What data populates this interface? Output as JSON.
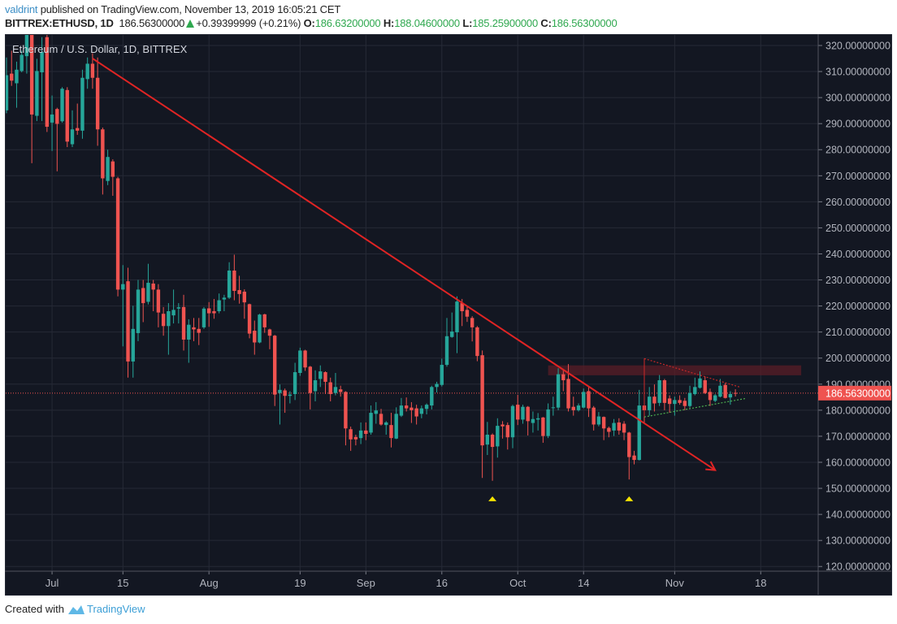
{
  "header": {
    "author": "valdrint",
    "published_text": " published on TradingView.com, November 13, 2019 16:05:21 CET",
    "symbol": "BITTREX:ETHUSD, 1D",
    "last_price": "186.56300000",
    "change_icon": "triangle-up-icon",
    "change": "+0.39399999 (+0.21%)",
    "open_label": "O:",
    "open": "186.63200000",
    "high_label": "H:",
    "high": "188.04600000",
    "low_label": "L:",
    "low": "185.25900000",
    "close_label": "C:",
    "close": "186.56300000"
  },
  "legend": "Ethereum / U.S. Dollar, 1D, BITTREX",
  "footer": {
    "created_with": "Created with",
    "brand": "TradingView",
    "logo_icon": "tradingview-logo-icon"
  },
  "colors": {
    "background": "#131722",
    "grid": "#262a36",
    "up": "#26a69a",
    "down": "#ef5350",
    "trendline": "#e02424",
    "axis_text": "#b2b5be",
    "price_label_bg": "#ef5350",
    "zone": "#5a1e27",
    "marker": "#f5e400",
    "support": "#4caf50"
  },
  "chart_data": {
    "type": "candlestick",
    "title": "Ethereum / U.S. Dollar, 1D, BITTREX",
    "ylim": [
      118.2,
      324.05
    ],
    "y_ticks": [
      "120.00000000",
      "130.00000000",
      "140.00000000",
      "150.00000000",
      "160.00000000",
      "170.00000000",
      "180.00000000",
      "190.00000000",
      "200.00000000",
      "210.00000000",
      "220.00000000",
      "230.00000000",
      "240.00000000",
      "250.00000000",
      "260.00000000",
      "270.00000000",
      "280.00000000",
      "290.00000000",
      "300.00000000",
      "310.00000000",
      "320.00000000"
    ],
    "x_ticks": [
      {
        "label": "Jul",
        "date": "2019-07-01"
      },
      {
        "label": "15",
        "date": "2019-07-15"
      },
      {
        "label": "Aug",
        "date": "2019-08-01"
      },
      {
        "label": "19",
        "date": "2019-08-19"
      },
      {
        "label": "Sep",
        "date": "2019-09-01"
      },
      {
        "label": "16",
        "date": "2019-09-16"
      },
      {
        "label": "Oct",
        "date": "2019-10-01"
      },
      {
        "label": "14",
        "date": "2019-10-14"
      },
      {
        "label": "Nov",
        "date": "2019-11-01"
      },
      {
        "label": "18",
        "date": "2019-11-18"
      }
    ],
    "x_end_date": "2019-11-29",
    "grid": true,
    "current_price": 186.563,
    "current_price_label": "186.56300000",
    "columns": [
      "date",
      "open",
      "high",
      "low",
      "close"
    ],
    "candles": [
      [
        "2019-06-22",
        295.1,
        315.4,
        294.0,
        308.6
      ],
      [
        "2019-06-23",
        309.2,
        318.0,
        304.5,
        306.5
      ],
      [
        "2019-06-24",
        305.5,
        313.8,
        296.1,
        310.7
      ],
      [
        "2019-06-25",
        310.2,
        318.0,
        309.7,
        316.4
      ],
      [
        "2019-06-26",
        315.9,
        326.0,
        309.2,
        324.5
      ],
      [
        "2019-06-27",
        324.5,
        326.0,
        274.8,
        293.5
      ],
      [
        "2019-06-28",
        293.0,
        314.9,
        291.0,
        310.2
      ],
      [
        "2019-06-29",
        309.7,
        323.2,
        291.0,
        317.5
      ],
      [
        "2019-06-30",
        323.2,
        326.0,
        286.8,
        288.8
      ],
      [
        "2019-07-01",
        290.4,
        300.8,
        279.5,
        293.5
      ],
      [
        "2019-07-02",
        295.6,
        296.1,
        271.7,
        289.9
      ],
      [
        "2019-07-03",
        290.9,
        304.0,
        290.4,
        303.4
      ],
      [
        "2019-07-04",
        302.9,
        304.0,
        281.0,
        283.1
      ],
      [
        "2019-07-05",
        282.1,
        295.1,
        281.0,
        287.8
      ],
      [
        "2019-07-06",
        288.3,
        297.7,
        285.7,
        287.3
      ],
      [
        "2019-07-07",
        287.3,
        310.7,
        284.2,
        307.6
      ],
      [
        "2019-07-08",
        307.1,
        315.4,
        303.4,
        313.0
      ],
      [
        "2019-07-09",
        313.0,
        317.0,
        303.4,
        307.6
      ],
      [
        "2019-07-10",
        307.6,
        315.4,
        281.5,
        287.8
      ],
      [
        "2019-07-11",
        287.8,
        288.5,
        262.8,
        269.0
      ],
      [
        "2019-07-12",
        268.0,
        280.0,
        266.4,
        277.2
      ],
      [
        "2019-07-13",
        275.5,
        276.3,
        262.3,
        269.6
      ],
      [
        "2019-07-14",
        269.0,
        269.6,
        223.7,
        226.3
      ],
      [
        "2019-07-15",
        226.3,
        235.7,
        204.5,
        228.4
      ],
      [
        "2019-07-16",
        229.5,
        234.7,
        192.5,
        198.7
      ],
      [
        "2019-07-17",
        198.7,
        220.1,
        192.5,
        211.2
      ],
      [
        "2019-07-18",
        209.6,
        230.0,
        206.5,
        226.3
      ],
      [
        "2019-07-19",
        226.9,
        230.0,
        213.8,
        221.1
      ],
      [
        "2019-07-20",
        221.6,
        236.2,
        220.6,
        228.9
      ],
      [
        "2019-07-21",
        228.6,
        230.0,
        218.0,
        226.3
      ],
      [
        "2019-07-22",
        226.3,
        228.4,
        211.8,
        217.5
      ],
      [
        "2019-07-23",
        217.0,
        219.6,
        208.6,
        212.3
      ],
      [
        "2019-07-24",
        212.3,
        221.1,
        201.3,
        218.0
      ],
      [
        "2019-07-25",
        216.4,
        226.3,
        213.3,
        218.5
      ],
      [
        "2019-07-26",
        219.0,
        221.1,
        213.3,
        219.5
      ],
      [
        "2019-07-27",
        219.6,
        224.3,
        202.9,
        207.1
      ],
      [
        "2019-07-28",
        207.1,
        214.9,
        198.2,
        212.8
      ],
      [
        "2019-07-29",
        211.8,
        215.4,
        206.5,
        211.0
      ],
      [
        "2019-07-30",
        211.2,
        215.4,
        205.0,
        209.7
      ],
      [
        "2019-07-31",
        211.8,
        219.6,
        211.2,
        219.0
      ],
      [
        "2019-08-01",
        219.1,
        221.5,
        212.0,
        217.2
      ],
      [
        "2019-08-02",
        218.0,
        222.7,
        215.1,
        217.2
      ],
      [
        "2019-08-03",
        218.0,
        224.8,
        217.2,
        222.2
      ],
      [
        "2019-08-04",
        222.5,
        224.3,
        218.0,
        223.2
      ],
      [
        "2019-08-05",
        223.2,
        236.8,
        222.7,
        233.6
      ],
      [
        "2019-08-06",
        233.6,
        239.7,
        222.2,
        225.8
      ],
      [
        "2019-08-07",
        226.1,
        231.6,
        220.9,
        224.6
      ],
      [
        "2019-08-08",
        225.5,
        226.4,
        215.1,
        221.4
      ],
      [
        "2019-08-09",
        220.7,
        220.9,
        207.6,
        209.4
      ],
      [
        "2019-08-10",
        210.5,
        214.4,
        201.3,
        206.0
      ],
      [
        "2019-08-11",
        206.0,
        217.0,
        205.7,
        216.7
      ],
      [
        "2019-08-12",
        216.8,
        217.0,
        209.7,
        211.8
      ],
      [
        "2019-08-13",
        211.0,
        211.3,
        203.4,
        208.6
      ],
      [
        "2019-08-14",
        208.6,
        208.9,
        181.6,
        186.0
      ],
      [
        "2019-08-15",
        186.6,
        189.9,
        174.5,
        187.8
      ],
      [
        "2019-08-16",
        187.6,
        188.3,
        179.0,
        185.5
      ],
      [
        "2019-08-17",
        185.5,
        187.3,
        182.6,
        186.0
      ],
      [
        "2019-08-18",
        186.2,
        198.2,
        183.9,
        194.6
      ],
      [
        "2019-08-19",
        194.3,
        204.0,
        193.2,
        202.9
      ],
      [
        "2019-08-20",
        202.9,
        203.2,
        195.1,
        196.4
      ],
      [
        "2019-08-21",
        196.7,
        197.0,
        180.3,
        186.6
      ],
      [
        "2019-08-22",
        187.3,
        195.3,
        183.4,
        191.5
      ],
      [
        "2019-08-23",
        192.0,
        197.2,
        188.9,
        194.9
      ],
      [
        "2019-08-24",
        194.6,
        194.9,
        186.2,
        190.9
      ],
      [
        "2019-08-25",
        190.7,
        192.5,
        183.4,
        186.2
      ],
      [
        "2019-08-26",
        186.6,
        194.3,
        185.7,
        188.9
      ],
      [
        "2019-08-27",
        188.0,
        189.4,
        185.2,
        187.0
      ],
      [
        "2019-08-28",
        187.0,
        187.3,
        166.5,
        173.0
      ],
      [
        "2019-08-29",
        172.7,
        173.7,
        164.4,
        168.8
      ],
      [
        "2019-08-30",
        169.7,
        170.6,
        166.5,
        168.8
      ],
      [
        "2019-08-31",
        169.3,
        175.3,
        167.0,
        172.2
      ],
      [
        "2019-09-01",
        172.2,
        175.3,
        168.5,
        170.9
      ],
      [
        "2019-09-02",
        171.4,
        181.8,
        170.6,
        179.0
      ],
      [
        "2019-09-03",
        178.6,
        183.1,
        174.8,
        179.9
      ],
      [
        "2019-09-04",
        178.6,
        180.5,
        174.1,
        174.5
      ],
      [
        "2019-09-05",
        174.3,
        175.8,
        170.6,
        175.3
      ],
      [
        "2019-09-06",
        174.3,
        179.0,
        165.7,
        169.3
      ],
      [
        "2019-09-07",
        169.1,
        181.1,
        168.9,
        178.6
      ],
      [
        "2019-09-08",
        177.9,
        184.7,
        177.4,
        181.8
      ],
      [
        "2019-09-09",
        181.8,
        184.9,
        179.5,
        180.7
      ],
      [
        "2019-09-10",
        181.0,
        183.1,
        175.1,
        180.0
      ],
      [
        "2019-09-11",
        180.7,
        182.1,
        174.5,
        177.6
      ],
      [
        "2019-09-12",
        178.6,
        181.8,
        176.9,
        180.7
      ],
      [
        "2019-09-13",
        180.5,
        182.6,
        178.4,
        182.1
      ],
      [
        "2019-09-14",
        181.8,
        189.4,
        180.3,
        188.9
      ],
      [
        "2019-09-15",
        188.9,
        190.9,
        186.8,
        190.1
      ],
      [
        "2019-09-16",
        189.7,
        199.8,
        189.1,
        197.4
      ],
      [
        "2019-09-17",
        197.4,
        215.4,
        196.7,
        208.4
      ],
      [
        "2019-09-18",
        208.1,
        217.5,
        207.8,
        210.2
      ],
      [
        "2019-09-19",
        209.9,
        223.7,
        201.9,
        221.7
      ],
      [
        "2019-09-20",
        221.1,
        222.7,
        212.3,
        218.0
      ],
      [
        "2019-09-21",
        218.5,
        220.1,
        213.9,
        215.9
      ],
      [
        "2019-09-22",
        215.4,
        216.1,
        206.4,
        211.8
      ],
      [
        "2019-09-23",
        211.8,
        212.3,
        198.8,
        200.8
      ],
      [
        "2019-09-24",
        201.1,
        202.9,
        154.0,
        166.5
      ],
      [
        "2019-09-25",
        166.8,
        175.5,
        162.8,
        170.6
      ],
      [
        "2019-09-26",
        170.6,
        171.1,
        152.9,
        165.9
      ],
      [
        "2019-09-27",
        166.1,
        176.9,
        161.8,
        174.0
      ],
      [
        "2019-09-28",
        174.5,
        175.8,
        169.1,
        173.8
      ],
      [
        "2019-09-29",
        174.3,
        175.3,
        164.9,
        169.6
      ],
      [
        "2019-09-30",
        169.6,
        182.1,
        165.4,
        181.6
      ],
      [
        "2019-10-01",
        182.1,
        185.9,
        174.3,
        176.4
      ],
      [
        "2019-10-02",
        176.4,
        182.1,
        174.8,
        181.3
      ],
      [
        "2019-10-03",
        181.3,
        181.6,
        170.3,
        175.8
      ],
      [
        "2019-10-04",
        175.1,
        179.5,
        171.4,
        176.6
      ],
      [
        "2019-10-05",
        176.4,
        178.9,
        172.2,
        176.9
      ],
      [
        "2019-10-06",
        177.2,
        177.4,
        167.5,
        170.1
      ],
      [
        "2019-10-07",
        170.1,
        182.6,
        169.3,
        180.3
      ],
      [
        "2019-10-08",
        180.8,
        185.2,
        177.9,
        181.1
      ],
      [
        "2019-10-09",
        181.0,
        196.1,
        180.0,
        193.8
      ],
      [
        "2019-10-10",
        193.8,
        195.6,
        187.3,
        191.5
      ],
      [
        "2019-10-11",
        192.0,
        197.7,
        179.5,
        180.7
      ],
      [
        "2019-10-12",
        181.3,
        185.2,
        177.9,
        180.0
      ],
      [
        "2019-10-13",
        180.0,
        182.6,
        179.5,
        181.8
      ],
      [
        "2019-10-14",
        181.0,
        188.3,
        180.7,
        187.0
      ],
      [
        "2019-10-15",
        187.3,
        188.9,
        177.4,
        180.7
      ],
      [
        "2019-10-16",
        181.0,
        181.6,
        172.2,
        174.5
      ],
      [
        "2019-10-17",
        174.5,
        179.3,
        173.8,
        177.6
      ],
      [
        "2019-10-18",
        177.4,
        177.6,
        168.5,
        173.0
      ],
      [
        "2019-10-19",
        173.2,
        173.7,
        169.6,
        171.7
      ],
      [
        "2019-10-20",
        172.2,
        176.6,
        170.1,
        175.1
      ],
      [
        "2019-10-21",
        175.3,
        176.9,
        170.6,
        172.2
      ],
      [
        "2019-10-22",
        174.8,
        175.8,
        168.5,
        171.4
      ],
      [
        "2019-10-23",
        171.4,
        171.7,
        153.4,
        162.0
      ],
      [
        "2019-10-24",
        162.6,
        164.4,
        159.2,
        160.9
      ],
      [
        "2019-10-25",
        160.9,
        187.8,
        160.7,
        181.8
      ],
      [
        "2019-10-26",
        181.8,
        199.8,
        175.3,
        180.0
      ],
      [
        "2019-10-27",
        180.0,
        188.9,
        177.9,
        185.2
      ],
      [
        "2019-10-28",
        185.2,
        189.9,
        179.5,
        182.6
      ],
      [
        "2019-10-29",
        182.8,
        193.5,
        181.6,
        191.5
      ],
      [
        "2019-10-30",
        191.5,
        192.0,
        180.0,
        182.8
      ],
      [
        "2019-10-31",
        184.5,
        185.7,
        179.0,
        182.4
      ],
      [
        "2019-11-01",
        182.4,
        185.2,
        177.9,
        183.9
      ],
      [
        "2019-11-02",
        183.9,
        185.7,
        182.1,
        182.8
      ],
      [
        "2019-11-03",
        183.6,
        184.7,
        180.0,
        181.6
      ],
      [
        "2019-11-04",
        181.6,
        189.4,
        181.0,
        186.6
      ],
      [
        "2019-11-05",
        186.2,
        192.5,
        185.7,
        188.9
      ],
      [
        "2019-11-06",
        188.6,
        194.9,
        188.3,
        192.2
      ],
      [
        "2019-11-07",
        191.5,
        193.0,
        186.2,
        186.6
      ],
      [
        "2019-11-08",
        187.0,
        188.3,
        181.6,
        183.9
      ],
      [
        "2019-11-09",
        183.6,
        186.2,
        183.1,
        185.7
      ],
      [
        "2019-11-10",
        185.2,
        192.0,
        184.9,
        189.4
      ],
      [
        "2019-11-11",
        189.7,
        190.4,
        184.5,
        184.7
      ],
      [
        "2019-11-12",
        184.9,
        187.3,
        182.1,
        186.2
      ],
      [
        "2019-11-13",
        186.632,
        188.046,
        185.259,
        186.563
      ]
    ],
    "drawings": {
      "trendline": {
        "from": [
          "2019-07-09",
          315.0
        ],
        "to": [
          "2019-11-09",
          157.0
        ],
        "arrow": true
      },
      "resistance_zone": {
        "from": [
          "2019-10-07",
          197.2
        ],
        "to": [
          "2019-11-26",
          193.4
        ]
      },
      "triangle_upper": {
        "from": [
          "2019-10-26",
          199.8
        ],
        "to": [
          "2019-11-14",
          188.8
        ]
      },
      "triangle_lower": {
        "from": [
          "2019-10-26",
          177.4
        ],
        "to": [
          "2019-11-15",
          184.5
        ]
      },
      "markers": [
        [
          "2019-09-26",
          146.0
        ],
        [
          "2019-10-23",
          146.0
        ]
      ]
    }
  }
}
